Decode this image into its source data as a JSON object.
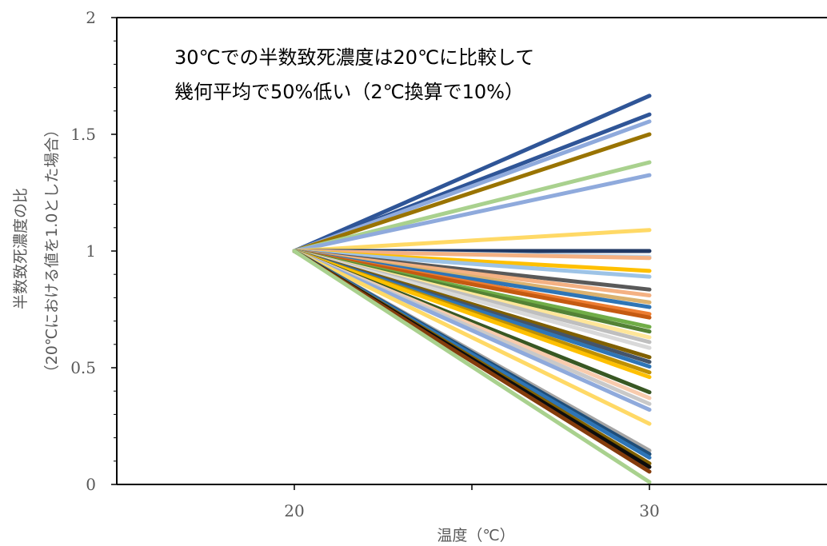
{
  "chart_data": {
    "type": "line",
    "title": "",
    "xlabel": "温度（℃）",
    "ylabel_line1": "半数致死濃度の比",
    "ylabel_line2": "（20℃における値を1.0とした場合）",
    "x": [
      20,
      30
    ],
    "xlim": [
      15,
      35
    ],
    "ylim": [
      0,
      2
    ],
    "yticks": [
      "0",
      "0.5",
      "1",
      "1.5",
      "2"
    ],
    "xticks": [
      "20",
      "30"
    ],
    "grid": false,
    "legend": "none",
    "annotation_line1": "30℃での半数致死濃度は20℃に比較して",
    "annotation_line2": "幾何平均で50%低い（2℃換算で10%）",
    "series": [
      {
        "values": [
          1,
          1.665
        ],
        "color": "#2f5597"
      },
      {
        "values": [
          1,
          1.585
        ],
        "color": "#2f5597"
      },
      {
        "values": [
          1,
          1.555
        ],
        "color": "#8faadc"
      },
      {
        "values": [
          1,
          1.5
        ],
        "color": "#997300"
      },
      {
        "values": [
          1,
          1.38
        ],
        "color": "#a9d18e"
      },
      {
        "values": [
          1,
          1.325
        ],
        "color": "#8faadc"
      },
      {
        "values": [
          1,
          1.09
        ],
        "color": "#ffd966"
      },
      {
        "values": [
          1,
          1.0
        ],
        "color": "#203864"
      },
      {
        "values": [
          1,
          0.975
        ],
        "color": "#bdd7ee"
      },
      {
        "values": [
          1,
          0.97
        ],
        "color": "#f4b183"
      },
      {
        "values": [
          1,
          0.915
        ],
        "color": "#ffc000"
      },
      {
        "values": [
          1,
          0.89
        ],
        "color": "#9dc3e6"
      },
      {
        "values": [
          1,
          0.835
        ],
        "color": "#595959"
      },
      {
        "values": [
          1,
          0.81
        ],
        "color": "#f4b183"
      },
      {
        "values": [
          1,
          0.78
        ],
        "color": "#dbb26f"
      },
      {
        "values": [
          1,
          0.76
        ],
        "color": "#2e75b6"
      },
      {
        "values": [
          1,
          0.73
        ],
        "color": "#ed7d31"
      },
      {
        "values": [
          1,
          0.715
        ],
        "color": "#c55a11"
      },
      {
        "values": [
          1,
          0.675
        ],
        "color": "#70ad47"
      },
      {
        "values": [
          1,
          0.655
        ],
        "color": "#548235"
      },
      {
        "values": [
          1,
          0.63
        ],
        "color": "#ffe699"
      },
      {
        "values": [
          1,
          0.61
        ],
        "color": "#bfbfbf"
      },
      {
        "values": [
          1,
          0.585
        ],
        "color": "#d9d9d9"
      },
      {
        "values": [
          1,
          0.545
        ],
        "color": "#806000"
      },
      {
        "values": [
          1,
          0.525
        ],
        "color": "#44546a"
      },
      {
        "values": [
          1,
          0.505
        ],
        "color": "#2e75b6"
      },
      {
        "values": [
          1,
          0.48
        ],
        "color": "#bf9000"
      },
      {
        "values": [
          1,
          0.46
        ],
        "color": "#ffc000"
      },
      {
        "values": [
          1,
          0.395
        ],
        "color": "#385723"
      },
      {
        "values": [
          1,
          0.37
        ],
        "color": "#f8cbad"
      },
      {
        "values": [
          1,
          0.345
        ],
        "color": "#c9c9c9"
      },
      {
        "values": [
          1,
          0.32
        ],
        "color": "#8faadc"
      },
      {
        "values": [
          1,
          0.26
        ],
        "color": "#ffd966"
      },
      {
        "values": [
          1,
          0.145
        ],
        "color": "#a5a5a5"
      },
      {
        "values": [
          1,
          0.13
        ],
        "color": "#1f4e79"
      },
      {
        "values": [
          1,
          0.115
        ],
        "color": "#2e75b6"
      },
      {
        "values": [
          1,
          0.09
        ],
        "color": "#806000"
      },
      {
        "values": [
          1,
          0.075
        ],
        "color": "#0d0d0d"
      },
      {
        "values": [
          1,
          0.055
        ],
        "color": "#843c0c"
      },
      {
        "values": [
          1,
          0.01
        ],
        "color": "#a9d18e"
      }
    ]
  }
}
